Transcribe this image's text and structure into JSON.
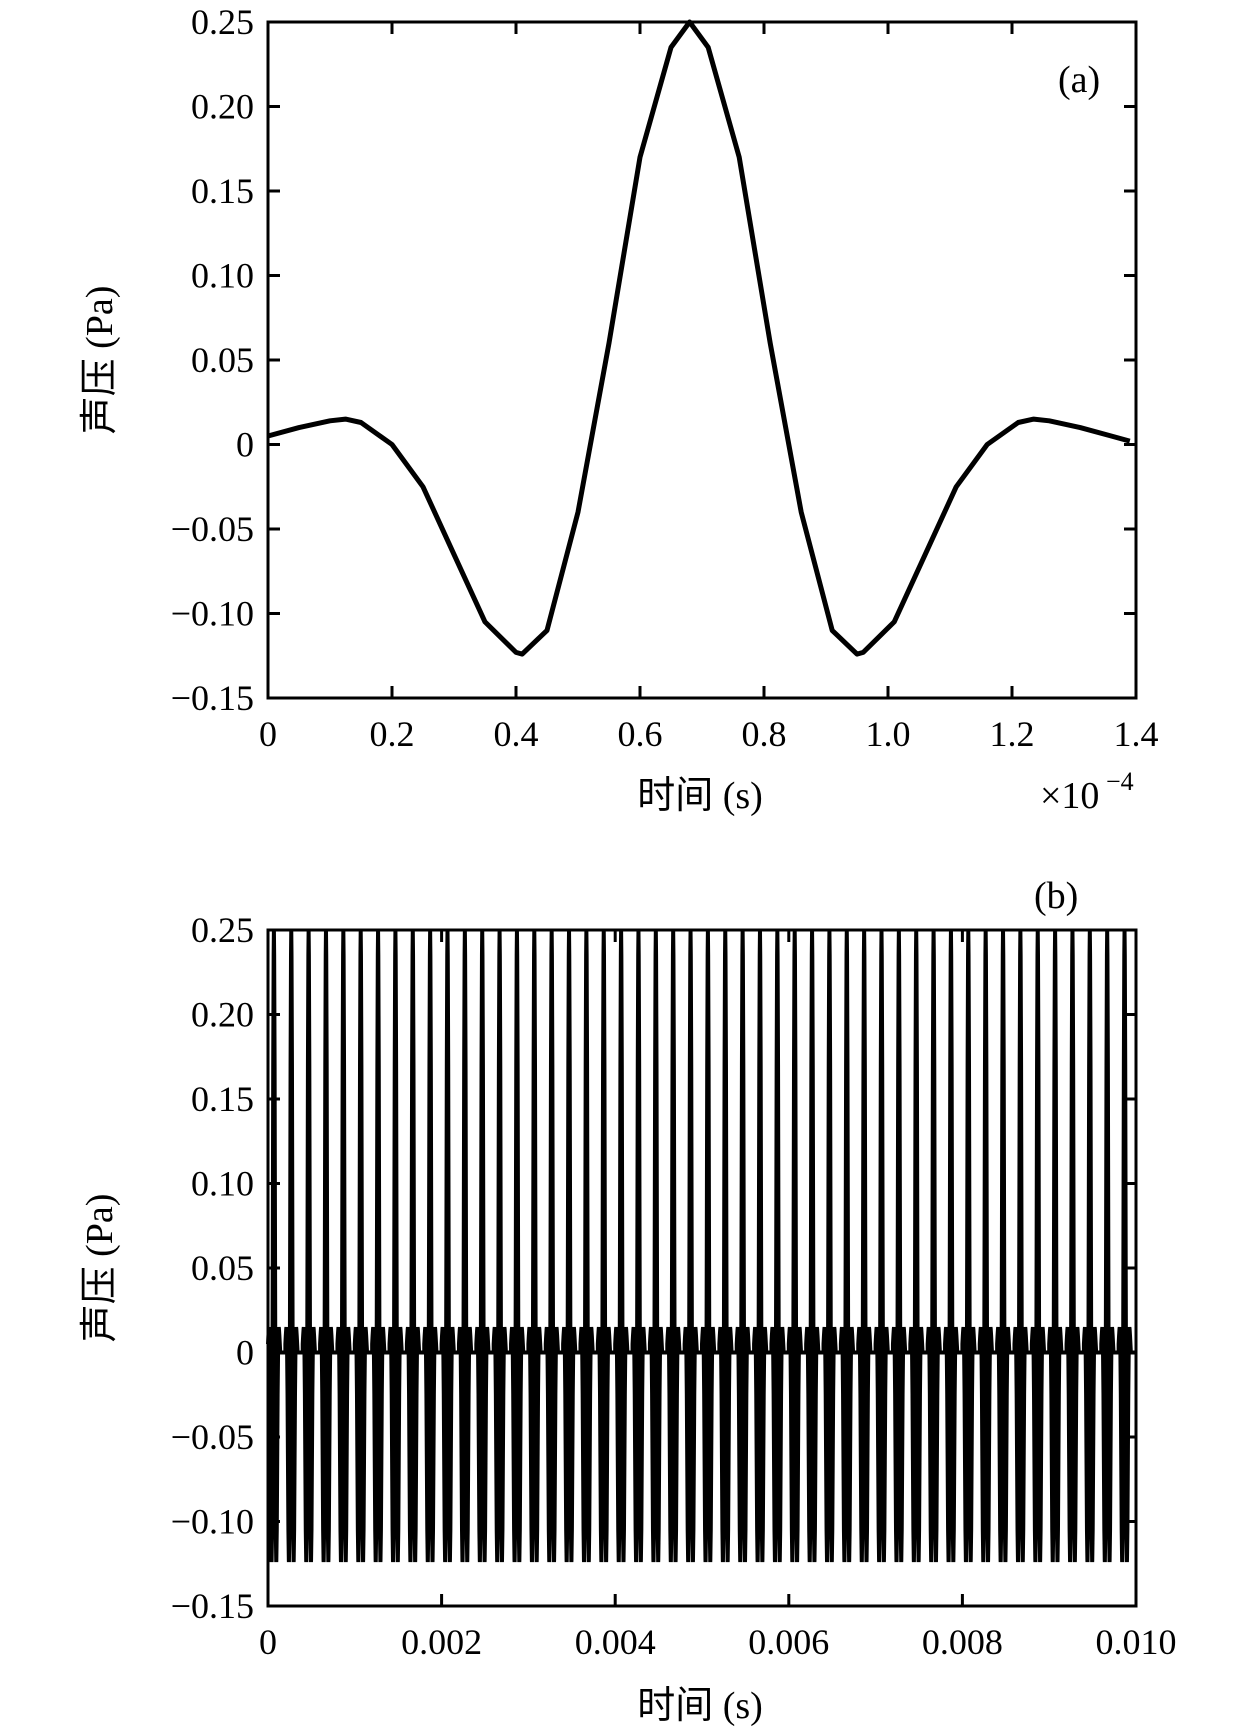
{
  "chart_data": [
    {
      "type": "line",
      "panel_label": "(a)",
      "xlabel": "时间 (s)",
      "ylabel": "声压 (Pa)",
      "x_multiplier_text": "×10",
      "x_multiplier_exp": "−4",
      "xlim": [
        0,
        1.4
      ],
      "ylim": [
        -0.15,
        0.25
      ],
      "xticks": [
        0,
        0.2,
        0.4,
        0.6,
        0.8,
        1.0,
        1.2,
        1.4
      ],
      "xtick_labels": [
        "0",
        "0.2",
        "0.4",
        "0.6",
        "0.8",
        "1.0",
        "1.2",
        "1.4"
      ],
      "yticks": [
        0.25,
        0.2,
        0.15,
        0.1,
        0.05,
        0,
        -0.05,
        -0.1,
        -0.15
      ],
      "ytick_labels": [
        "0.25",
        "0.20",
        "0.15",
        "0.10",
        "0.05",
        "0",
        "−0.05",
        "−0.10",
        "−0.15"
      ],
      "series": [
        {
          "x": [
            0,
            0.05,
            0.1,
            0.125,
            0.15,
            0.2,
            0.25,
            0.3,
            0.35,
            0.4,
            0.41,
            0.45,
            0.5,
            0.55,
            0.6,
            0.65,
            0.68,
            0.71,
            0.76,
            0.81,
            0.86,
            0.91,
            0.95,
            0.96,
            1.01,
            1.06,
            1.11,
            1.16,
            1.21,
            1.235,
            1.26,
            1.31,
            1.36,
            1.39
          ],
          "y": [
            0.005,
            0.01,
            0.014,
            0.015,
            0.013,
            0,
            -0.025,
            -0.065,
            -0.105,
            -0.123,
            -0.124,
            -0.11,
            -0.04,
            0.06,
            0.17,
            0.235,
            0.25,
            0.235,
            0.17,
            0.06,
            -0.04,
            -0.11,
            -0.124,
            -0.123,
            -0.105,
            -0.065,
            -0.025,
            0,
            0.013,
            0.015,
            0.014,
            0.01,
            0.005,
            0.002
          ]
        }
      ]
    },
    {
      "type": "line",
      "panel_label": "(b)",
      "xlabel": "时间 (s)",
      "ylabel": "声压 (Pa)",
      "xlim": [
        0,
        0.01
      ],
      "ylim": [
        -0.15,
        0.25
      ],
      "xticks": [
        0,
        0.002,
        0.004,
        0.006,
        0.008,
        0.01
      ],
      "xtick_labels": [
        "0",
        "0.002",
        "0.004",
        "0.006",
        "0.008",
        "0.010"
      ],
      "yticks": [
        0.25,
        0.2,
        0.15,
        0.1,
        0.05,
        0,
        -0.05,
        -0.1,
        -0.15
      ],
      "ytick_labels": [
        "0.25",
        "0.20",
        "0.15",
        "0.10",
        "0.05",
        "0",
        "−0.05",
        "−0.10",
        "−0.15"
      ],
      "pulse_period": 0.0002,
      "pulse_count": 50,
      "pulse_max": 0.25,
      "pulse_min": -0.124,
      "baseline_max": 0.015
    }
  ]
}
